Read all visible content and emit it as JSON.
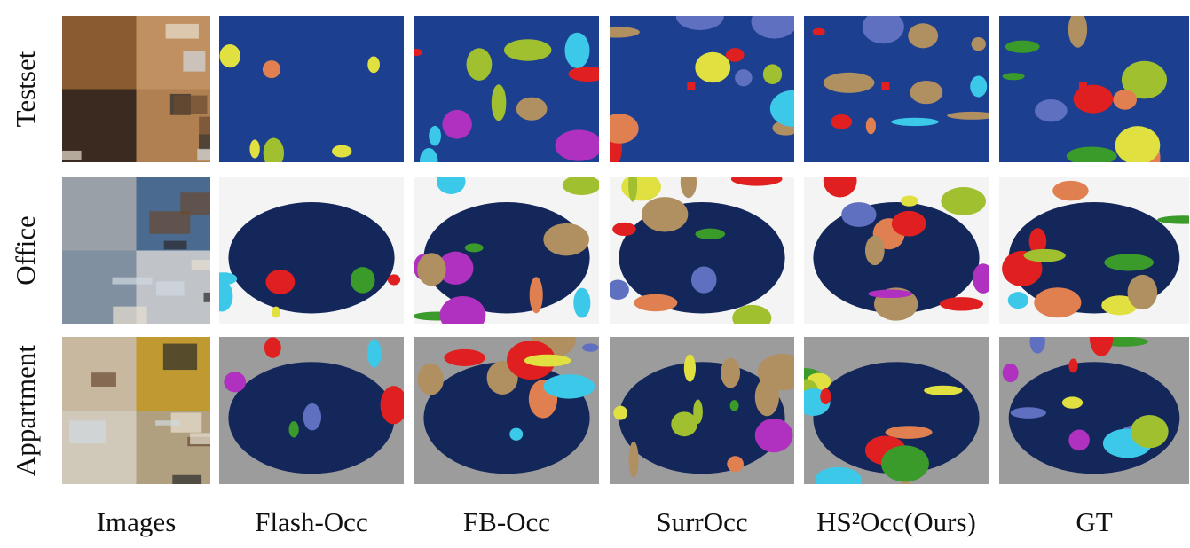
{
  "figure": {
    "rows": [
      "Testset",
      "Office",
      "Appartment"
    ],
    "columns": [
      "Images",
      "Flash-Occ",
      "FB-Occ",
      "SurrOcc",
      "HS²Occ(Ours)",
      "GT"
    ]
  }
}
